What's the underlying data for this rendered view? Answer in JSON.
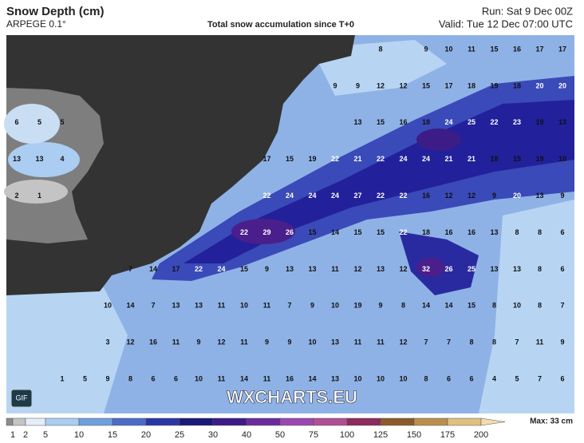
{
  "header": {
    "title": "Snow Depth (cm)",
    "model": "ARPEGE 0.1°",
    "subtitle": "Total snow accumulation since T+0",
    "run": "Run: Sat 9 Dec 00Z",
    "valid": "Valid: Tue 12 Dec 07:00 UTC"
  },
  "map": {
    "rows": [
      [
        null,
        null,
        null,
        null,
        null,
        null,
        null,
        null,
        null,
        null,
        null,
        null,
        null,
        null,
        null,
        null,
        8,
        null,
        9,
        10,
        11,
        15,
        16,
        17,
        17
      ],
      [
        null,
        null,
        null,
        null,
        null,
        null,
        null,
        null,
        null,
        null,
        null,
        null,
        null,
        null,
        9,
        9,
        12,
        12,
        15,
        17,
        18,
        19,
        18,
        20,
        20
      ],
      [
        6,
        5,
        5,
        null,
        null,
        null,
        null,
        null,
        null,
        null,
        null,
        null,
        null,
        null,
        null,
        13,
        15,
        16,
        18,
        24,
        25,
        22,
        23,
        19,
        13
      ],
      [
        13,
        13,
        4,
        null,
        null,
        null,
        null,
        null,
        null,
        null,
        null,
        17,
        15,
        19,
        22,
        21,
        22,
        24,
        24,
        21,
        21,
        18,
        15,
        19,
        10
      ],
      [
        2,
        1,
        null,
        null,
        null,
        null,
        null,
        null,
        null,
        null,
        null,
        22,
        24,
        24,
        24,
        27,
        22,
        22,
        16,
        12,
        12,
        9,
        20,
        13,
        9
      ],
      [
        null,
        null,
        null,
        null,
        null,
        null,
        null,
        null,
        null,
        null,
        22,
        29,
        26,
        15,
        14,
        15,
        15,
        22,
        18,
        16,
        16,
        13,
        8,
        8,
        6
      ],
      [
        null,
        null,
        null,
        null,
        null,
        7,
        14,
        17,
        22,
        24,
        15,
        9,
        13,
        13,
        11,
        12,
        13,
        12,
        32,
        26,
        25,
        13,
        13,
        8,
        6
      ],
      [
        null,
        null,
        null,
        null,
        10,
        14,
        7,
        13,
        13,
        11,
        10,
        11,
        7,
        9,
        10,
        19,
        9,
        8,
        14,
        14,
        15,
        8,
        10,
        8,
        7
      ],
      [
        null,
        null,
        null,
        null,
        3,
        12,
        16,
        11,
        9,
        12,
        11,
        9,
        9,
        10,
        13,
        11,
        11,
        12,
        7,
        7,
        8,
        8,
        7,
        11,
        9
      ],
      [
        null,
        null,
        1,
        5,
        9,
        8,
        6,
        6,
        10,
        11,
        14,
        11,
        16,
        14,
        13,
        10,
        10,
        10,
        8,
        6,
        6,
        4,
        5,
        7,
        6
      ]
    ]
  },
  "watermark": "WXCHARTS.EU",
  "gif_button": "GIF",
  "legend": {
    "labels": [
      1,
      2,
      5,
      10,
      15,
      20,
      25,
      30,
      40,
      50,
      75,
      100,
      125,
      150,
      175,
      200
    ],
    "colors": [
      "#8c8c8c",
      "#c4c4c4",
      "#e4edf8",
      "#aacdf1",
      "#6f9fdc",
      "#4a6cc6",
      "#2b36a6",
      "#1a1878",
      "#3d1a88",
      "#6c2b9c",
      "#9c47b0",
      "#b04f94",
      "#8c2b5c",
      "#8c5a2a",
      "#b8904c",
      "#dfc07f",
      "#f3dcae"
    ],
    "max": "Max: 33 cm"
  }
}
